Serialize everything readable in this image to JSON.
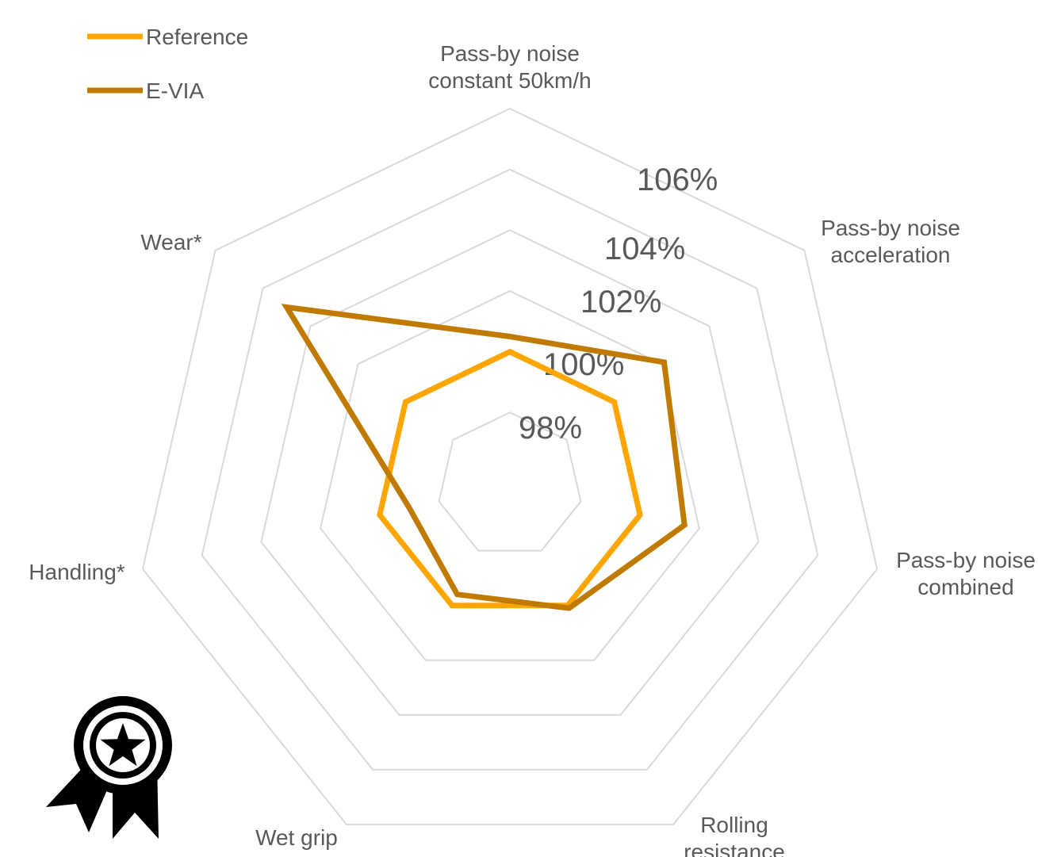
{
  "chart_data": {
    "type": "radar",
    "axes": [
      {
        "label_lines": [
          "Pass-by noise",
          "constant 50km/h"
        ]
      },
      {
        "label_lines": [
          "Pass-by noise",
          "acceleration"
        ]
      },
      {
        "label_lines": [
          "Pass-by noise",
          "combined"
        ]
      },
      {
        "label_lines": [
          "Rolling",
          "resistance"
        ]
      },
      {
        "label_lines": [
          "Wet grip"
        ]
      },
      {
        "label_lines": [
          "Handling*"
        ]
      },
      {
        "label_lines": [
          "Wear*"
        ]
      }
    ],
    "r_ticks": [
      "98%",
      "100%",
      "102%",
      "104%",
      "106%"
    ],
    "r_range": [
      96,
      108
    ],
    "grid": true,
    "legend_position": "top-left",
    "series": [
      {
        "name": "Reference",
        "color": "#FFA500",
        "values": [
          100,
          100,
          100,
          100,
          100,
          100,
          100
        ]
      },
      {
        "name": "E-VIA",
        "color": "#C07A00",
        "values": [
          100.5,
          102.1,
          101.5,
          100.1,
          99.6,
          99.0,
          105.0
        ]
      }
    ]
  },
  "icon": {
    "name": "award-ribbon-icon"
  }
}
